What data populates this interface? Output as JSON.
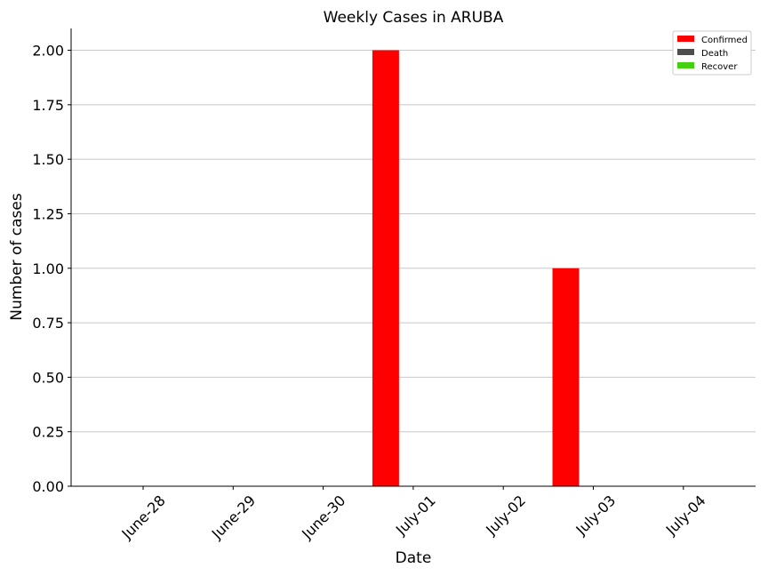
{
  "chart_data": {
    "type": "bar",
    "title": "Weekly Cases in ARUBA",
    "xlabel": "Date",
    "ylabel": "Number of cases",
    "categories": [
      "June-28",
      "June-29",
      "June-30",
      "July-01",
      "July-02",
      "July-03",
      "July-04"
    ],
    "series": [
      {
        "name": "Confirmed",
        "color": "#ff0000",
        "values": [
          0,
          0,
          0,
          2,
          0,
          1,
          0
        ]
      },
      {
        "name": "Death",
        "color": "#4d4d4d",
        "values": [
          0,
          0,
          0,
          0,
          0,
          0,
          0
        ]
      },
      {
        "name": "Recover",
        "color": "#44d011",
        "values": [
          0,
          0,
          0,
          0,
          0,
          0,
          0
        ]
      }
    ],
    "ylim": [
      0,
      2.1
    ],
    "yticks": [
      "0.00",
      "0.25",
      "0.50",
      "0.75",
      "1.00",
      "1.25",
      "1.50",
      "1.75",
      "2.00"
    ],
    "grid": "horizontal",
    "legend_position": "top-right"
  }
}
